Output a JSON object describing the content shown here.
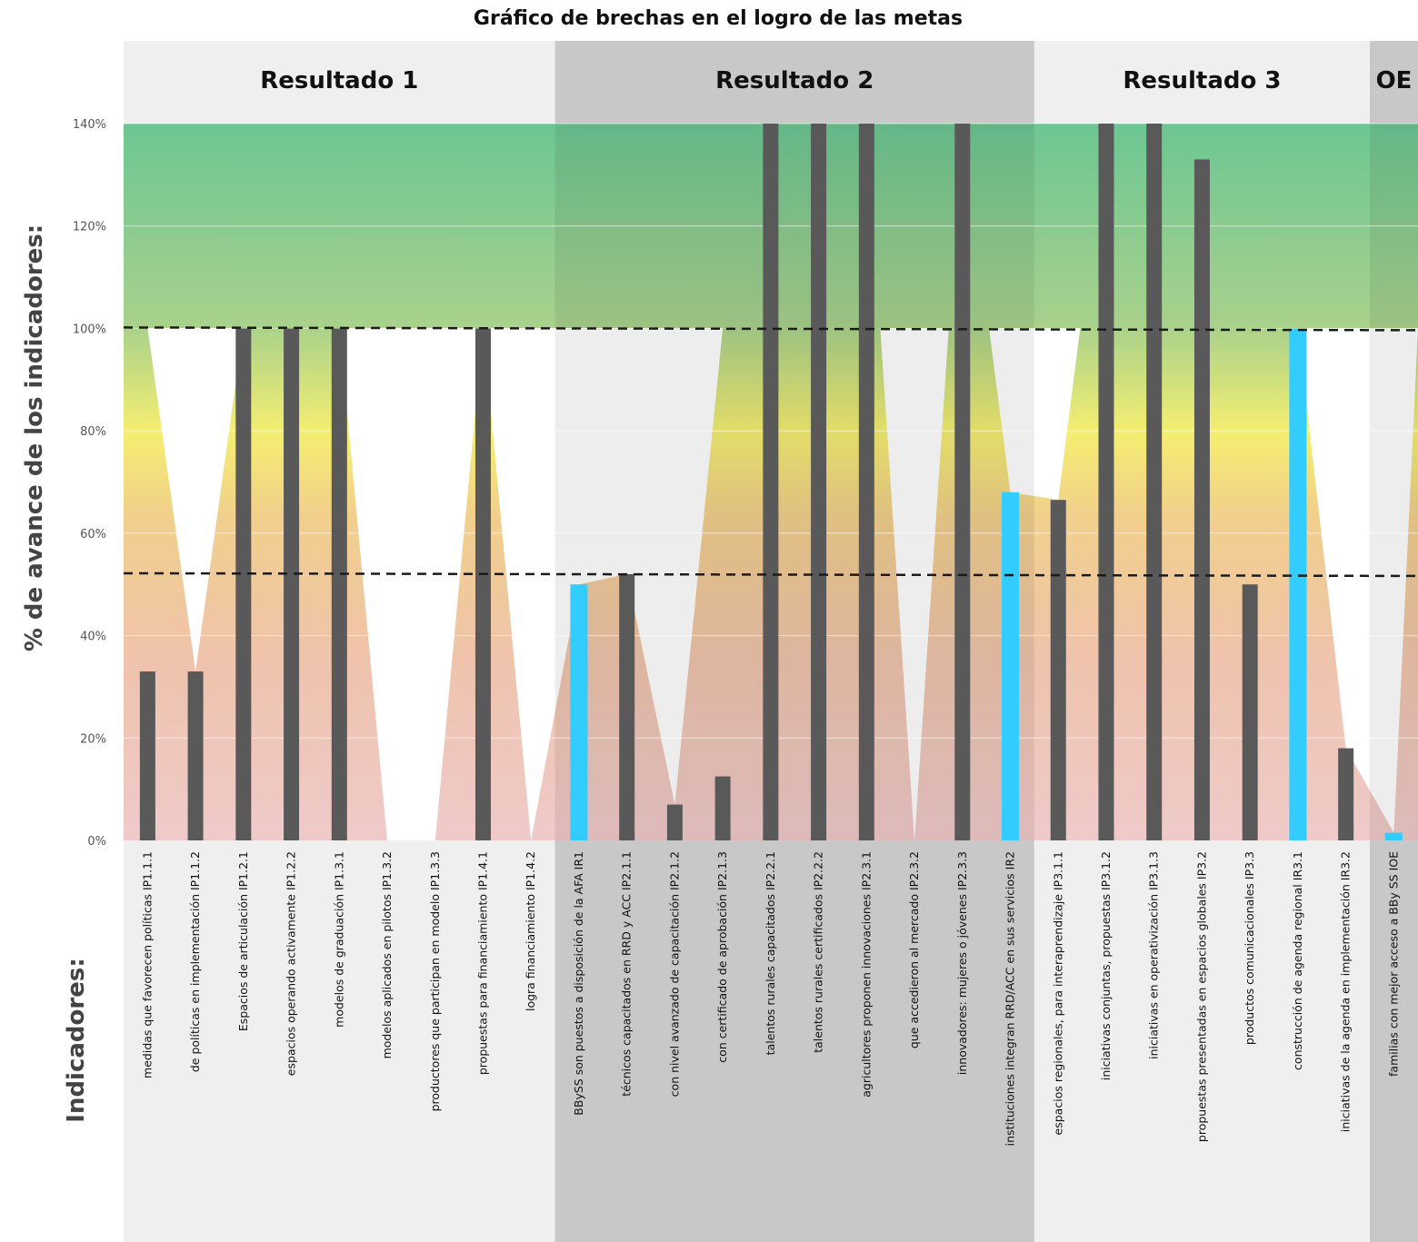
{
  "chart_data": {
    "type": "bar",
    "title": "Gráfico de brechas en el logro de las metas",
    "ylabel": "% de avance de los indicadores:",
    "xlabel": "Indicadores:",
    "ylim": [
      0,
      140
    ],
    "y_ticks": [
      "0%",
      "20%",
      "40%",
      "60%",
      "80%",
      "100%",
      "120%",
      "140%"
    ],
    "reference_lines": [
      100,
      52
    ],
    "groups": [
      {
        "label": "Resultado 1",
        "start": 0,
        "end": 9
      },
      {
        "label": "Resultado 2",
        "start": 9,
        "end": 19
      },
      {
        "label": "Resultado 3",
        "start": 19,
        "end": 26
      },
      {
        "label": "OE",
        "start": 26,
        "end": 27
      }
    ],
    "categories": [
      "medidas que favorecen políticas IP1.1.1",
      "de políticas en implementación IP1.1.2",
      "Espacios de articulación IP1.2.1",
      "espacios operando activamente IP1.2.2",
      "modelos de graduación IP1.3.1",
      "modelos aplicados en pilotos IP1.3.2",
      "productores que participan en modelo IP1.3.3",
      "propuestas para financiamiento IP1.4.1",
      "logra financiamiento IP1.4.2",
      "BBySS son puestos a disposición de la AFA IR1",
      "técnicos capacitados en RRD y ACC IP2.1.1",
      "con nivel avanzado de capacitación IP2.1.2",
      "con certificado de aprobación IP2.1.3",
      "talentos rurales capacitados IP2.2.1",
      "talentos rurales certificados IP2.2.2",
      "agricultores proponen innovaciones IP2.3.1",
      "que accedieron al mercado IP2.3.2",
      "innovadores: mujeres o jóvenes IP2.3.3",
      "instituciones integran RRD/ACC en sus servicios IR2",
      "espacios regionales, para  interaprendizaje IP3.1.1",
      "iniciativas conjuntas, propuestas IP3.1.2",
      "iniciativas en operativización  IP3.1.3",
      "propuestas presentadas en espacios globales IP3.2",
      "productos comunicacionales IP3.3",
      "construcción de agenda regional IR3.1",
      "iniciativas de la agenda en implementación IR3.2",
      "familias con mejor acceso a BBy SS IOE"
    ],
    "values": [
      33,
      33,
      100,
      100,
      100,
      0,
      0,
      100,
      0,
      50,
      52,
      7,
      12.5,
      140,
      140,
      140,
      0,
      140,
      68,
      66.5,
      140,
      140,
      133,
      50,
      100,
      18,
      1.5
    ],
    "area_values": [
      100,
      33,
      100,
      100,
      100,
      0,
      0,
      100,
      0,
      50,
      52,
      7,
      100,
      140,
      140,
      140,
      0,
      140,
      68,
      66.5,
      140,
      140,
      140,
      100,
      100,
      18,
      1.5,
      100
    ],
    "highlighted": [
      9,
      18,
      24,
      26
    ],
    "colors": {
      "bar": "#595959",
      "highlight_bar": "#33ccff",
      "group_light": "#efefef",
      "group_dark": "#c8c8c8",
      "reference_line": "#1a1a1a"
    },
    "grid": true
  }
}
